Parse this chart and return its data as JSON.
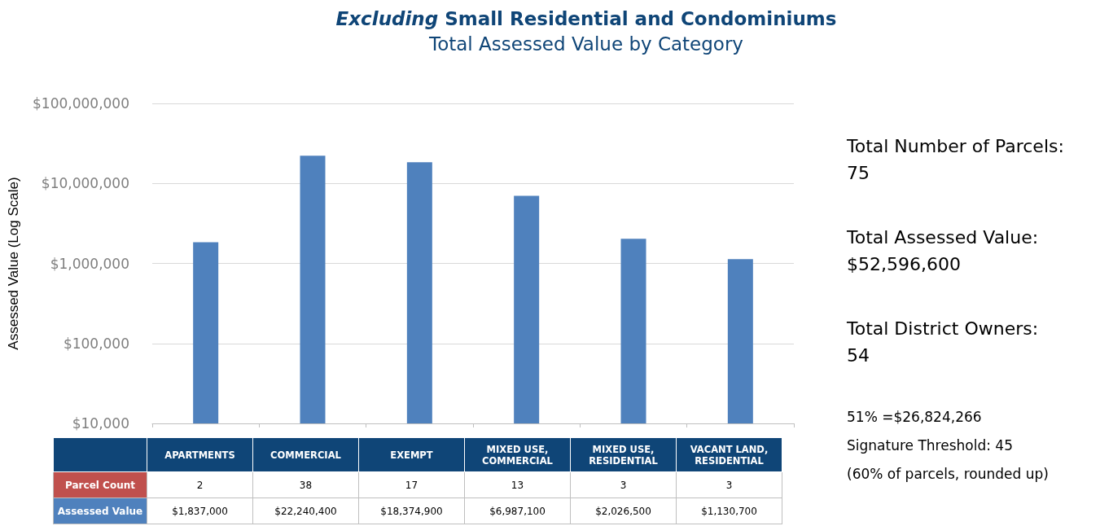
{
  "chart_data": {
    "type": "bar",
    "title": "Excluding Small Residential and Condominiums",
    "subtitle": "Total Assessed Value by Category",
    "ylabel": "Assessed Value (Log Scale)",
    "categories": [
      "APARTMENTS",
      "COMMERCIAL",
      "EXEMPT",
      "MIXED USE, COMMERCIAL",
      "MIXED USE, RESIDENTIAL",
      "VACANT LAND, RESIDENTIAL"
    ],
    "values": [
      1837000,
      22240400,
      18374900,
      6987100,
      2026500,
      1130700
    ],
    "value_labels": [
      "$1,837,000",
      "$22,240,400",
      "$18,374,900",
      "$6,987,100",
      "$2,026,500",
      "$1,130,700"
    ],
    "color": "#4f81bd",
    "log": true,
    "grid": "y",
    "ylim": [
      10000,
      100000000
    ],
    "yticks": [
      {
        "value": 10000,
        "label": "$10,000"
      },
      {
        "value": 100000,
        "label": "$100,000"
      },
      {
        "value": 1000000,
        "label": "$1,000,000"
      },
      {
        "value": 10000000,
        "label": "$10,000,000"
      },
      {
        "value": 100000000,
        "label": "$100,000,000"
      }
    ],
    "annotations": [
      "Parcel Count",
      "Assessed Value",
      "2",
      "38",
      "17",
      "13",
      "3",
      "3",
      "Total Number of Parcels:\n75",
      "Total Assessed Value:\n$52,596,600",
      "Total District Owners:\n54",
      "51% =$26,824,266",
      "Signature Threshold: 45",
      "(60% of parcels, rounded up)"
    ]
  }
}
